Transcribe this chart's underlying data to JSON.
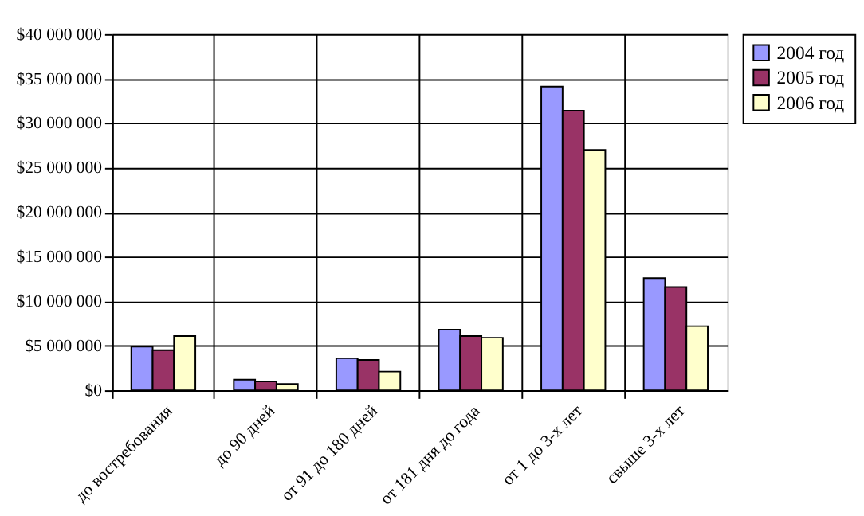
{
  "chart_data": {
    "type": "bar",
    "categories": [
      "до востребования",
      "до 90 дней",
      "от 91 до 180 дней",
      "от 181 дня до года",
      "от 1 до 3-х лет",
      "свыше 3-х лет"
    ],
    "series": [
      {
        "name": "2004 год",
        "color": "#9999ff",
        "values": [
          4900000,
          1200000,
          3600000,
          6800000,
          34100000,
          12600000
        ]
      },
      {
        "name": "2005 год",
        "color": "#993366",
        "values": [
          4500000,
          1000000,
          3400000,
          6100000,
          31400000,
          11600000
        ]
      },
      {
        "name": "2006 год",
        "color": "#ffffcc",
        "values": [
          6100000,
          700000,
          2100000,
          5900000,
          27000000,
          7200000
        ]
      }
    ],
    "ylim": [
      0,
      40000000
    ],
    "yticks": [
      {
        "value": 0,
        "label": "$0"
      },
      {
        "value": 5000000,
        "label": "$5 000 000"
      },
      {
        "value": 10000000,
        "label": "$10 000 000"
      },
      {
        "value": 15000000,
        "label": "$15 000 000"
      },
      {
        "value": 20000000,
        "label": "$20 000 000"
      },
      {
        "value": 25000000,
        "label": "$25 000 000"
      },
      {
        "value": 30000000,
        "label": "$30 000 000"
      },
      {
        "value": 35000000,
        "label": "$35 000 000"
      },
      {
        "value": 40000000,
        "label": "$40 000 000"
      }
    ],
    "grid": true,
    "legend": "right"
  }
}
